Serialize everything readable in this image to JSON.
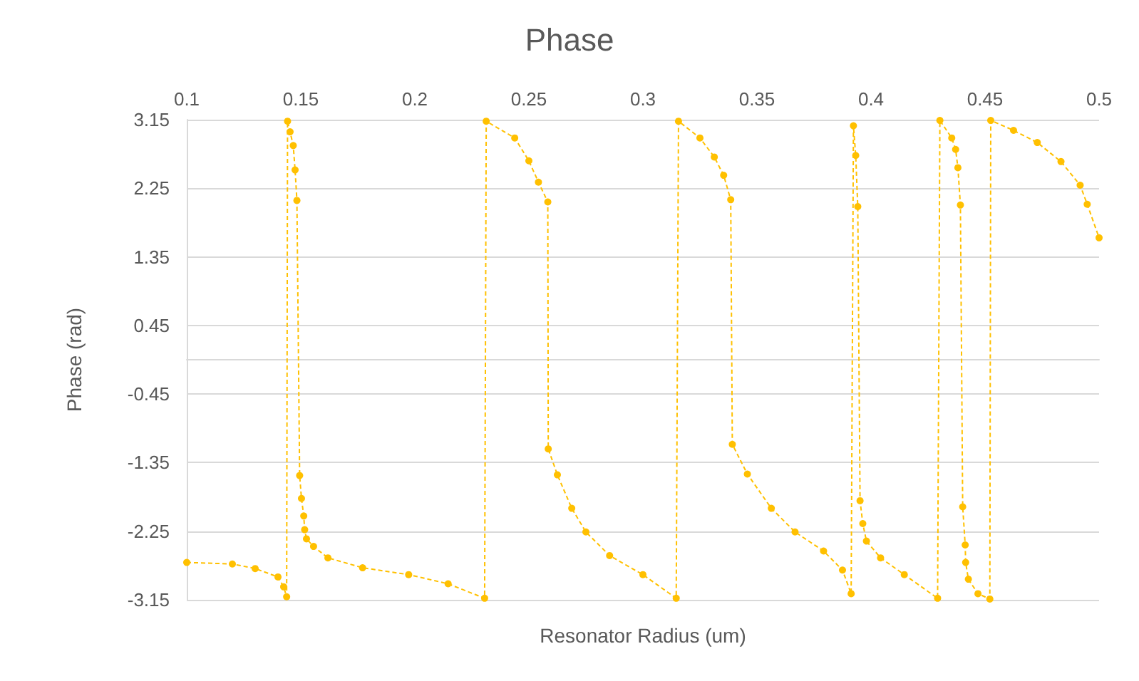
{
  "chart_data": {
    "type": "line",
    "title": "Phase",
    "xlabel": "Resonator Radius (um)",
    "ylabel": "Phase (rad)",
    "xlim": [
      0.1,
      0.5
    ],
    "xticks": [
      0.1,
      0.15,
      0.2,
      0.25,
      0.3,
      0.35,
      0.4,
      0.45,
      0.5
    ],
    "ylim": [
      -3.15,
      3.15
    ],
    "yticks": [
      -3.15,
      -2.25,
      -1.35,
      -0.45,
      0.45,
      1.35,
      2.25,
      3.15
    ],
    "grid": "y",
    "marker": "circle",
    "line_style": "dashed",
    "series": [
      {
        "color": "#ffc000",
        "x": [
          0.1,
          0.12,
          0.13,
          0.14,
          0.1425,
          0.1438,
          0.1442,
          0.1453,
          0.1467,
          0.1475,
          0.1483,
          0.1495,
          0.1503,
          0.1513,
          0.1517,
          0.1525,
          0.1556,
          0.1619,
          0.1771,
          0.1973,
          0.2146,
          0.2306,
          0.2313,
          0.2438,
          0.25,
          0.2542,
          0.2583,
          0.2585,
          0.2625,
          0.2688,
          0.275,
          0.2854,
          0.3,
          0.3146,
          0.3156,
          0.325,
          0.3313,
          0.3354,
          0.3385,
          0.3392,
          0.3458,
          0.3563,
          0.3667,
          0.3792,
          0.3875,
          0.3913,
          0.3923,
          0.3933,
          0.3942,
          0.3952,
          0.3964,
          0.398,
          0.4042,
          0.4146,
          0.4292,
          0.4302,
          0.4354,
          0.4371,
          0.4381,
          0.4392,
          0.4402,
          0.4413,
          0.4415,
          0.4427,
          0.4469,
          0.4521,
          0.4525,
          0.4625,
          0.4729,
          0.4833,
          0.4917,
          0.4948,
          0.5
        ],
        "values": [
          -2.66,
          -2.68,
          -2.74,
          -2.85,
          -2.98,
          -3.11,
          3.13,
          2.99,
          2.81,
          2.49,
          2.09,
          -1.52,
          -1.82,
          -2.05,
          -2.23,
          -2.35,
          -2.45,
          -2.6,
          -2.73,
          -2.82,
          -2.94,
          -3.13,
          3.13,
          2.91,
          2.61,
          2.33,
          2.07,
          -1.17,
          -1.51,
          -1.95,
          -2.26,
          -2.57,
          -2.82,
          -3.13,
          3.13,
          2.91,
          2.66,
          2.42,
          2.1,
          -1.11,
          -1.5,
          -1.95,
          -2.26,
          -2.51,
          -2.76,
          -3.07,
          3.07,
          2.68,
          2.01,
          -1.85,
          -2.15,
          -2.38,
          -2.6,
          -2.82,
          -3.13,
          3.14,
          2.91,
          2.76,
          2.52,
          2.03,
          -1.93,
          -2.43,
          -2.66,
          -2.88,
          -3.07,
          -3.14,
          3.14,
          3.01,
          2.85,
          2.6,
          2.29,
          2.04,
          1.6
        ]
      }
    ]
  }
}
